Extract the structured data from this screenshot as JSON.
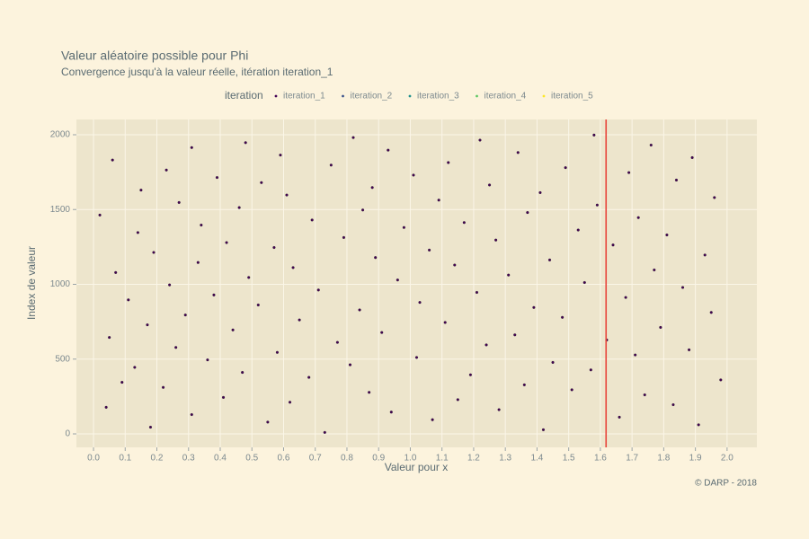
{
  "chart_data": {
    "type": "scatter",
    "title": "Valeur aléatoire possible pour Phi",
    "subtitle": "Convergence jusqu'à la valeur réelle, itération iteration_1",
    "x_label": "Valeur pour x",
    "y_label": "Index de valeur",
    "caption": "© DARP - 2018",
    "legend_title": "iteration",
    "legend_position": "top",
    "grid": true,
    "xlim": [
      -0.054,
      2.094
    ],
    "ylim": [
      -90,
      2102
    ],
    "xticks": [
      {
        "value": 0,
        "label": "0.0"
      },
      0.1,
      0.2,
      0.3,
      0.4,
      0.5,
      0.6,
      0.7,
      0.8,
      0.9,
      {
        "value": 1,
        "label": "1.0"
      },
      1.1,
      1.2,
      1.3,
      1.4,
      1.5,
      1.6,
      1.7,
      1.8,
      1.9,
      {
        "value": 2,
        "label": "2.0"
      }
    ],
    "yticks": [
      0,
      500,
      1000,
      1500,
      2000
    ],
    "vline": {
      "value": 1.618,
      "color": "#e8453c"
    },
    "series": [
      {
        "name": "iteration_1",
        "color": "#440154",
        "x": [
          0.73,
          1.42,
          0.18,
          1.91,
          0.55,
          1.07,
          1.66,
          0.31,
          0.94,
          1.28,
          0.04,
          1.83,
          0.62,
          1.15,
          0.41,
          1.74,
          0.87,
          1.51,
          0.22,
          1.36,
          0.09,
          1.98,
          0.68,
          1.19,
          0.47,
          1.57,
          0.13,
          0.81,
          1.45,
          0.36,
          1.02,
          1.71,
          0.58,
          1.88,
          0.26,
          1.24,
          0.77,
          1.62,
          0.05,
          1.33,
          0.91,
          0.44,
          1.79,
          0.17,
          1.11,
          0.65,
          1.48,
          0.29,
          1.95,
          0.84,
          1.39,
          0.52,
          1.03,
          0.11,
          1.68,
          0.38,
          1.21,
          0.71,
          1.86,
          0.24,
          1.55,
          0.96,
          0.49,
          1.31,
          0.07,
          1.77,
          0.63,
          1.14,
          0.33,
          1.44,
          0.89,
          1.93,
          0.19,
          1.06,
          0.57,
          1.64,
          0.42,
          1.27,
          0.79,
          1.81,
          0.14,
          1.53,
          0.98,
          0.34,
          1.17,
          0.69,
          1.72,
          0.02,
          1.37,
          0.85,
          0.46,
          1.59,
          0.27,
          1.09,
          1.96,
          0.61,
          1.41,
          0.15,
          0.88,
          1.25,
          0.53,
          1.84,
          0.39,
          1.01,
          1.69,
          0.23,
          1.49,
          0.75,
          1.12,
          0.06,
          1.89,
          0.59,
          1.34,
          0.93,
          0.31,
          1.76,
          0.48,
          1.22,
          0.82,
          1.58
        ],
        "values": [
          10,
          28,
          45,
          61,
          79,
          95,
          112,
          129,
          146,
          162,
          178,
          195,
          212,
          229,
          244,
          261,
          278,
          295,
          311,
          328,
          345,
          361,
          378,
          395,
          411,
          428,
          445,
          462,
          478,
          495,
          511,
          528,
          545,
          562,
          578,
          595,
          612,
          628,
          645,
          662,
          678,
          695,
          712,
          729,
          745,
          762,
          779,
          795,
          812,
          829,
          845,
          862,
          879,
          896,
          912,
          929,
          946,
          962,
          979,
          996,
          1012,
          1029,
          1046,
          1062,
          1079,
          1096,
          1112,
          1129,
          1146,
          1163,
          1179,
          1196,
          1213,
          1229,
          1246,
          1263,
          1279,
          1296,
          1313,
          1330,
          1346,
          1363,
          1380,
          1396,
          1413,
          1430,
          1446,
          1463,
          1480,
          1497,
          1513,
          1530,
          1547,
          1563,
          1580,
          1597,
          1613,
          1630,
          1647,
          1664,
          1680,
          1697,
          1714,
          1730,
          1747,
          1764,
          1780,
          1797,
          1814,
          1831,
          1847,
          1864,
          1881,
          1897,
          1914,
          1931,
          1947,
          1964,
          1981,
          1998
        ]
      },
      {
        "name": "iteration_2",
        "color": "#3b528b",
        "x": [],
        "values": []
      },
      {
        "name": "iteration_3",
        "color": "#21908c",
        "x": [],
        "values": []
      },
      {
        "name": "iteration_4",
        "color": "#5dc863",
        "x": [],
        "values": []
      },
      {
        "name": "iteration_5",
        "color": "#fde725",
        "x": [],
        "values": []
      }
    ]
  }
}
